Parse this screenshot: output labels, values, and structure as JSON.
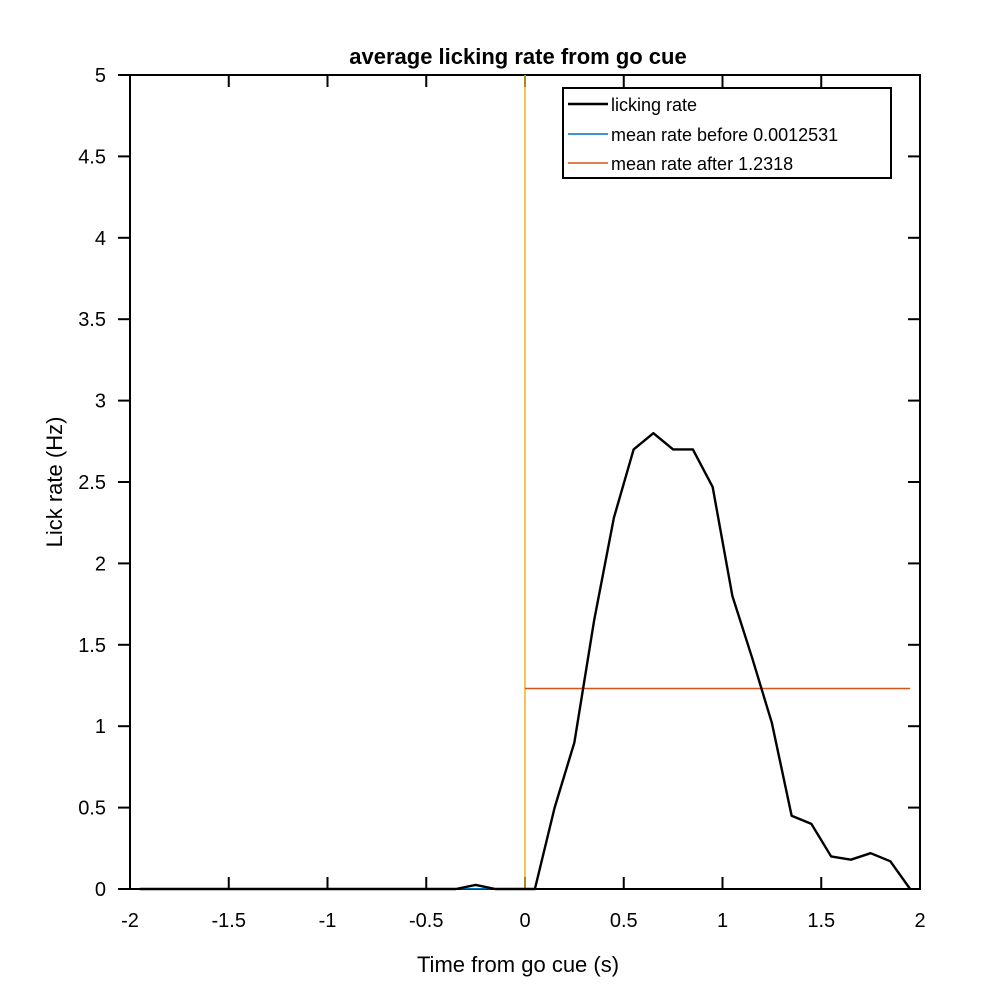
{
  "chart_data": {
    "type": "line",
    "title": "average licking rate from go cue",
    "xlabel": "Time from go cue (s)",
    "ylabel": "Lick rate (Hz)",
    "xlim": [
      -2,
      2
    ],
    "ylim": [
      0,
      5
    ],
    "xticks": [
      -2,
      -1.5,
      -1,
      -0.5,
      0,
      0.5,
      1,
      1.5,
      2
    ],
    "xtick_labels": [
      "-2",
      "-1.5",
      "-1",
      "-0.5",
      "0",
      "0.5",
      "1",
      "1.5",
      "2"
    ],
    "yticks": [
      0,
      0.5,
      1,
      1.5,
      2,
      2.5,
      3,
      3.5,
      4,
      4.5,
      5
    ],
    "ytick_labels": [
      "0",
      "0.5",
      "1",
      "1.5",
      "2",
      "2.5",
      "3",
      "3.5",
      "4",
      "4.5",
      "5"
    ],
    "grid": false,
    "legend_position": "top-right",
    "series": [
      {
        "name": "licking rate",
        "color": "#000000",
        "x": [
          -1.95,
          -1.85,
          -1.75,
          -1.65,
          -1.55,
          -1.45,
          -1.35,
          -1.25,
          -1.15,
          -1.05,
          -0.95,
          -0.85,
          -0.75,
          -0.65,
          -0.55,
          -0.45,
          -0.35,
          -0.25,
          -0.15,
          -0.05,
          0.05,
          0.15,
          0.25,
          0.35,
          0.45,
          0.55,
          0.65,
          0.75,
          0.85,
          0.95,
          1.05,
          1.15,
          1.25,
          1.35,
          1.45,
          1.55,
          1.65,
          1.75,
          1.85,
          1.95
        ],
        "y": [
          0,
          0,
          0,
          0,
          0,
          0,
          0,
          0,
          0,
          0,
          0,
          0,
          0,
          0,
          0,
          0,
          0,
          0.025,
          0,
          0,
          0,
          0.5,
          0.9,
          1.65,
          2.28,
          2.7,
          2.8,
          2.7,
          2.7,
          2.47,
          1.8,
          1.42,
          1.02,
          0.45,
          0.4,
          0.2,
          0.18,
          0.22,
          0.17,
          0
        ]
      },
      {
        "name": "mean rate before 0.0012531",
        "color": "#0072bd",
        "x": [
          -1.95,
          0
        ],
        "y": [
          0.0012531,
          0.0012531
        ]
      },
      {
        "name": "mean rate after 1.2318",
        "color": "#d95319",
        "x": [
          0,
          1.95
        ],
        "y": [
          1.2318,
          1.2318
        ]
      }
    ],
    "annotations": [
      {
        "type": "vline",
        "x": 0,
        "color": "#edb120"
      }
    ]
  }
}
